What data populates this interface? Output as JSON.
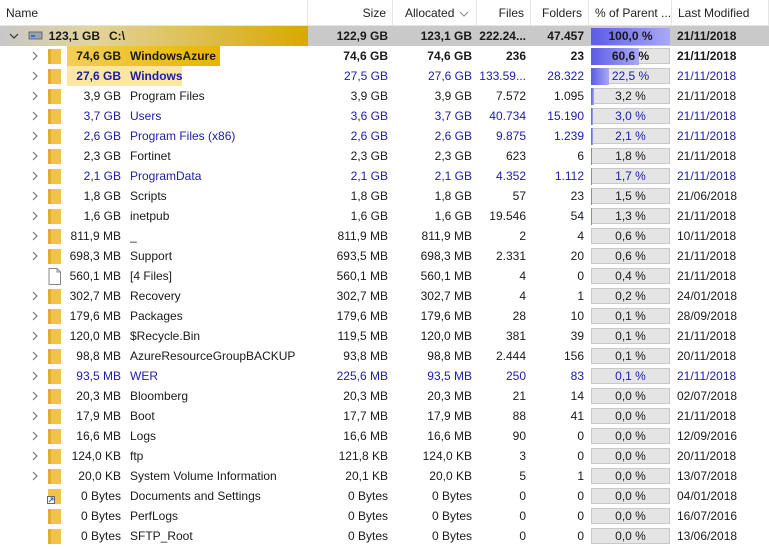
{
  "header": {
    "columns": [
      "Name",
      "Size",
      "Allocated",
      "Files",
      "Folders",
      "% of Parent ...",
      "Last Modified"
    ]
  },
  "rows": [
    {
      "total": "123,1 GB",
      "name": "C:\\",
      "size": "122,9 GB",
      "allocated": "123,1 GB",
      "files": "222.24...",
      "folders": "47.457",
      "parent_pct": {
        "value": 100.0,
        "label": "100,0 %"
      },
      "modified": "21/11/2018",
      "icon": "drive",
      "level": 0,
      "expandable": true,
      "bold": true,
      "color": "#1a1a1a"
    },
    {
      "total": "74,6 GB",
      "name": "WindowsAzure",
      "size": "74,6 GB",
      "allocated": "74,6 GB",
      "files": "236",
      "folders": "23",
      "parent_pct": {
        "value": 60.6,
        "label": "60,6 %"
      },
      "modified": "21/11/2018",
      "icon": "folder",
      "level": 1,
      "expandable": true,
      "bold": true,
      "color": "#1a1a1a"
    },
    {
      "total": "27,6 GB",
      "name": "Windows",
      "size": "27,5 GB",
      "allocated": "27,6 GB",
      "files": "133.59...",
      "folders": "28.322",
      "parent_pct": {
        "value": 22.5,
        "label": "22,5 %"
      },
      "modified": "21/11/2018",
      "icon": "folder",
      "level": 1,
      "expandable": true,
      "bold": true,
      "color": "#1c1ca8"
    },
    {
      "total": "3,9 GB",
      "name": "Program Files",
      "size": "3,9 GB",
      "allocated": "3,9 GB",
      "files": "7.572",
      "folders": "1.095",
      "parent_pct": {
        "value": 3.2,
        "label": "3,2 %"
      },
      "modified": "21/11/2018",
      "icon": "folder",
      "level": 1,
      "expandable": true,
      "bold": false,
      "color": "#1a1a1a"
    },
    {
      "total": "3,7 GB",
      "name": "Users",
      "size": "3,6 GB",
      "allocated": "3,7 GB",
      "files": "40.734",
      "folders": "15.190",
      "parent_pct": {
        "value": 3.0,
        "label": "3,0 %"
      },
      "modified": "21/11/2018",
      "icon": "folder",
      "level": 1,
      "expandable": true,
      "bold": false,
      "color": "#1c1ca8"
    },
    {
      "total": "2,6 GB",
      "name": "Program Files (x86)",
      "size": "2,6 GB",
      "allocated": "2,6 GB",
      "files": "9.875",
      "folders": "1.239",
      "parent_pct": {
        "value": 2.1,
        "label": "2,1 %"
      },
      "modified": "21/11/2018",
      "icon": "folder",
      "level": 1,
      "expandable": true,
      "bold": false,
      "color": "#1c1ca8"
    },
    {
      "total": "2,3 GB",
      "name": "Fortinet",
      "size": "2,3 GB",
      "allocated": "2,3 GB",
      "files": "623",
      "folders": "6",
      "parent_pct": {
        "value": 1.8,
        "label": "1,8 %"
      },
      "modified": "21/11/2018",
      "icon": "folder",
      "level": 1,
      "expandable": true,
      "bold": false,
      "color": "#1a1a1a"
    },
    {
      "total": "2,1 GB",
      "name": "ProgramData",
      "size": "2,1 GB",
      "allocated": "2,1 GB",
      "files": "4.352",
      "folders": "1.112",
      "parent_pct": {
        "value": 1.7,
        "label": "1,7 %"
      },
      "modified": "21/11/2018",
      "icon": "folder",
      "level": 1,
      "expandable": true,
      "bold": false,
      "color": "#1c1ca8"
    },
    {
      "total": "1,8 GB",
      "name": "Scripts",
      "size": "1,8 GB",
      "allocated": "1,8 GB",
      "files": "57",
      "folders": "23",
      "parent_pct": {
        "value": 1.5,
        "label": "1,5 %"
      },
      "modified": "21/06/2018",
      "icon": "folder",
      "level": 1,
      "expandable": true,
      "bold": false,
      "color": "#1a1a1a"
    },
    {
      "total": "1,6 GB",
      "name": "inetpub",
      "size": "1,6 GB",
      "allocated": "1,6 GB",
      "files": "19.546",
      "folders": "54",
      "parent_pct": {
        "value": 1.3,
        "label": "1,3 %"
      },
      "modified": "21/11/2018",
      "icon": "folder",
      "level": 1,
      "expandable": true,
      "bold": false,
      "color": "#1a1a1a"
    },
    {
      "total": "811,9 MB",
      "name": "_",
      "size": "811,9 MB",
      "allocated": "811,9 MB",
      "files": "2",
      "folders": "4",
      "parent_pct": {
        "value": 0.6,
        "label": "0,6 %"
      },
      "modified": "10/11/2018",
      "icon": "folder",
      "level": 1,
      "expandable": true,
      "bold": false,
      "color": "#1a1a1a"
    },
    {
      "total": "698,3 MB",
      "name": "Support",
      "size": "693,5 MB",
      "allocated": "698,3 MB",
      "files": "2.331",
      "folders": "20",
      "parent_pct": {
        "value": 0.6,
        "label": "0,6 %"
      },
      "modified": "21/11/2018",
      "icon": "folder",
      "level": 1,
      "expandable": true,
      "bold": false,
      "color": "#1a1a1a"
    },
    {
      "total": "560,1 MB",
      "name": "[4 Files]",
      "size": "560,1 MB",
      "allocated": "560,1 MB",
      "files": "4",
      "folders": "0",
      "parent_pct": {
        "value": 0.4,
        "label": "0,4 %"
      },
      "modified": "21/11/2018",
      "icon": "file",
      "level": 1,
      "expandable": false,
      "bold": false,
      "color": "#1a1a1a"
    },
    {
      "total": "302,7 MB",
      "name": "Recovery",
      "size": "302,7 MB",
      "allocated": "302,7 MB",
      "files": "4",
      "folders": "1",
      "parent_pct": {
        "value": 0.2,
        "label": "0,2 %"
      },
      "modified": "24/01/2018",
      "icon": "folder",
      "level": 1,
      "expandable": true,
      "bold": false,
      "color": "#1a1a1a"
    },
    {
      "total": "179,6 MB",
      "name": "Packages",
      "size": "179,6 MB",
      "allocated": "179,6 MB",
      "files": "28",
      "folders": "10",
      "parent_pct": {
        "value": 0.1,
        "label": "0,1 %"
      },
      "modified": "28/09/2018",
      "icon": "folder",
      "level": 1,
      "expandable": true,
      "bold": false,
      "color": "#1a1a1a"
    },
    {
      "total": "120,0 MB",
      "name": "$Recycle.Bin",
      "size": "119,5 MB",
      "allocated": "120,0 MB",
      "files": "381",
      "folders": "39",
      "parent_pct": {
        "value": 0.1,
        "label": "0,1 %"
      },
      "modified": "21/11/2018",
      "icon": "folder",
      "level": 1,
      "expandable": true,
      "bold": false,
      "color": "#1a1a1a"
    },
    {
      "total": "98,8 MB",
      "name": "AzureResourceGroupBACKUP",
      "size": "93,8 MB",
      "allocated": "98,8 MB",
      "files": "2.444",
      "folders": "156",
      "parent_pct": {
        "value": 0.1,
        "label": "0,1 %"
      },
      "modified": "20/11/2018",
      "icon": "folder",
      "level": 1,
      "expandable": true,
      "bold": false,
      "color": "#1a1a1a"
    },
    {
      "total": "93,5 MB",
      "name": "WER",
      "size": "225,6 MB",
      "allocated": "93,5 MB",
      "files": "250",
      "folders": "83",
      "parent_pct": {
        "value": 0.1,
        "label": "0,1 %"
      },
      "modified": "21/11/2018",
      "icon": "folder",
      "level": 1,
      "expandable": true,
      "bold": false,
      "color": "#1c1ca8"
    },
    {
      "total": "20,3 MB",
      "name": "Bloomberg",
      "size": "20,3 MB",
      "allocated": "20,3 MB",
      "files": "21",
      "folders": "14",
      "parent_pct": {
        "value": 0.0,
        "label": "0,0 %"
      },
      "modified": "02/07/2018",
      "icon": "folder",
      "level": 1,
      "expandable": true,
      "bold": false,
      "color": "#1a1a1a"
    },
    {
      "total": "17,9 MB",
      "name": "Boot",
      "size": "17,7 MB",
      "allocated": "17,9 MB",
      "files": "88",
      "folders": "41",
      "parent_pct": {
        "value": 0.0,
        "label": "0,0 %"
      },
      "modified": "21/11/2018",
      "icon": "folder",
      "level": 1,
      "expandable": true,
      "bold": false,
      "color": "#1a1a1a"
    },
    {
      "total": "16,6 MB",
      "name": "Logs",
      "size": "16,6 MB",
      "allocated": "16,6 MB",
      "files": "90",
      "folders": "0",
      "parent_pct": {
        "value": 0.0,
        "label": "0,0 %"
      },
      "modified": "12/09/2016",
      "icon": "folder",
      "level": 1,
      "expandable": true,
      "bold": false,
      "color": "#1a1a1a"
    },
    {
      "total": "124,0 KB",
      "name": "ftp",
      "size": "121,8 KB",
      "allocated": "124,0 KB",
      "files": "3",
      "folders": "0",
      "parent_pct": {
        "value": 0.0,
        "label": "0,0 %"
      },
      "modified": "20/11/2018",
      "icon": "folder",
      "level": 1,
      "expandable": true,
      "bold": false,
      "color": "#1a1a1a"
    },
    {
      "total": "20,0 KB",
      "name": "System Volume Information",
      "size": "20,1 KB",
      "allocated": "20,0 KB",
      "files": "5",
      "folders": "1",
      "parent_pct": {
        "value": 0.0,
        "label": "0,0 %"
      },
      "modified": "13/07/2018",
      "icon": "folder",
      "level": 1,
      "expandable": true,
      "bold": false,
      "color": "#1a1a1a"
    },
    {
      "total": "0 Bytes",
      "name": "Documents and Settings",
      "size": "0 Bytes",
      "allocated": "0 Bytes",
      "files": "0",
      "folders": "0",
      "parent_pct": {
        "value": 0.0,
        "label": "0,0 %"
      },
      "modified": "04/01/2018",
      "icon": "link",
      "level": 1,
      "expandable": false,
      "bold": false,
      "color": "#1a1a1a"
    },
    {
      "total": "0 Bytes",
      "name": "PerfLogs",
      "size": "0 Bytes",
      "allocated": "0 Bytes",
      "files": "0",
      "folders": "0",
      "parent_pct": {
        "value": 0.0,
        "label": "0,0 %"
      },
      "modified": "16/07/2016",
      "icon": "folder",
      "level": 1,
      "expandable": false,
      "bold": false,
      "color": "#1a1a1a"
    },
    {
      "total": "0 Bytes",
      "name": "SFTP_Root",
      "size": "0 Bytes",
      "allocated": "0 Bytes",
      "files": "0",
      "folders": "0",
      "parent_pct": {
        "value": 0.0,
        "label": "0,0 %"
      },
      "modified": "13/06/2018",
      "icon": "folder",
      "level": 1,
      "expandable": false,
      "bold": false,
      "color": "#1a1a1a"
    }
  ]
}
